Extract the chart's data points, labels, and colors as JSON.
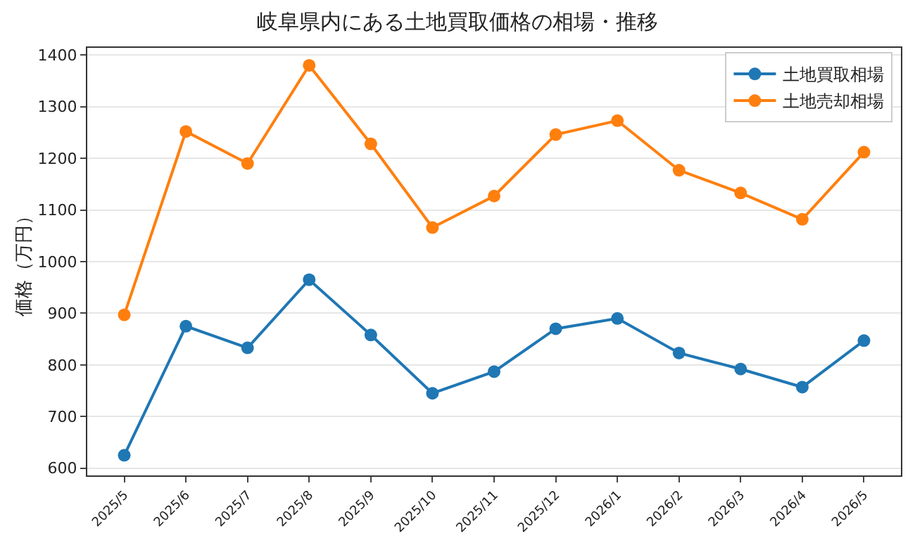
{
  "chart_data": {
    "type": "line",
    "title": "岐阜県内にある土地買取価格の相場・推移",
    "ylabel": "価格（万円）",
    "categories": [
      "2025/5",
      "2025/6",
      "2025/7",
      "2025/8",
      "2025/9",
      "2025/10",
      "2025/11",
      "2025/12",
      "2026/1",
      "2026/2",
      "2026/3",
      "2026/4",
      "2026/5"
    ],
    "series": [
      {
        "name": "土地買取相場",
        "color": "#1f77b4",
        "values": [
          625,
          875,
          833,
          965,
          858,
          745,
          787,
          870,
          890,
          823,
          792,
          757,
          847
        ]
      },
      {
        "name": "土地売却相場",
        "color": "#ff7f0e",
        "values": [
          897,
          1252,
          1190,
          1380,
          1228,
          1066,
          1127,
          1246,
          1273,
          1177,
          1133,
          1082,
          1212
        ]
      }
    ],
    "ylim": [
      586,
      1414
    ],
    "yticks": [
      600,
      700,
      800,
      900,
      1000,
      1100,
      1200,
      1300,
      1400
    ],
    "grid": "y",
    "legend": "top right",
    "marker": "circle",
    "line_style": "solid"
  }
}
